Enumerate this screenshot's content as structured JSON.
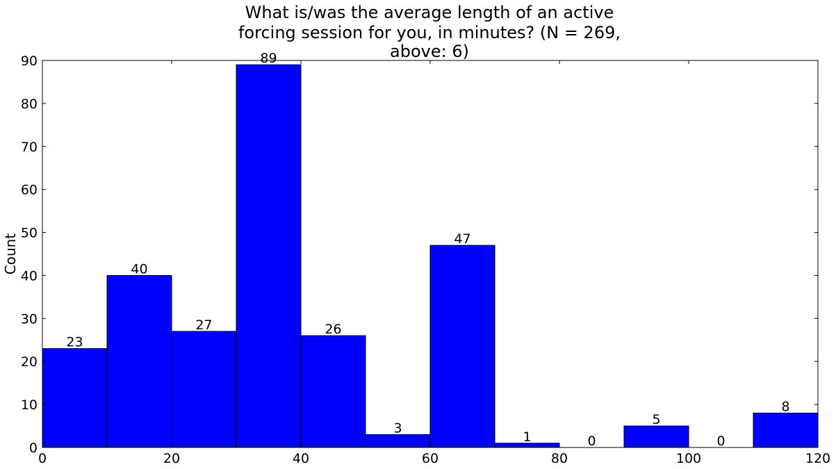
{
  "chart_data": {
    "type": "bar",
    "title_lines": [
      "What is/was the average length of an active",
      "forcing session for you, in minutes? (N = 269,",
      "above: 6)"
    ],
    "xlabel": "",
    "ylabel": "Count",
    "xlim": [
      0,
      120
    ],
    "ylim": [
      0,
      90
    ],
    "x_ticks": [
      0,
      20,
      40,
      60,
      80,
      100,
      120
    ],
    "y_ticks": [
      0,
      10,
      20,
      30,
      40,
      50,
      60,
      70,
      80,
      90
    ],
    "bin_width": 10,
    "bins": [
      {
        "x0": 0,
        "x1": 10,
        "value": 23,
        "label": "23"
      },
      {
        "x0": 10,
        "x1": 20,
        "value": 40,
        "label": "40"
      },
      {
        "x0": 20,
        "x1": 30,
        "value": 27,
        "label": "27"
      },
      {
        "x0": 30,
        "x1": 40,
        "value": 89,
        "label": "89"
      },
      {
        "x0": 40,
        "x1": 50,
        "value": 26,
        "label": "26"
      },
      {
        "x0": 50,
        "x1": 60,
        "value": 3,
        "label": "3"
      },
      {
        "x0": 60,
        "x1": 70,
        "value": 47,
        "label": "47"
      },
      {
        "x0": 70,
        "x1": 80,
        "value": 1,
        "label": "1"
      },
      {
        "x0": 80,
        "x1": 90,
        "value": 0,
        "label": "0"
      },
      {
        "x0": 90,
        "x1": 100,
        "value": 5,
        "label": "5"
      },
      {
        "x0": 100,
        "x1": 110,
        "value": 0,
        "label": "0"
      },
      {
        "x0": 110,
        "x1": 120,
        "value": 8,
        "label": "8"
      }
    ],
    "bar_color": "#0000ff",
    "edge_color": "#000000",
    "grid": false
  }
}
